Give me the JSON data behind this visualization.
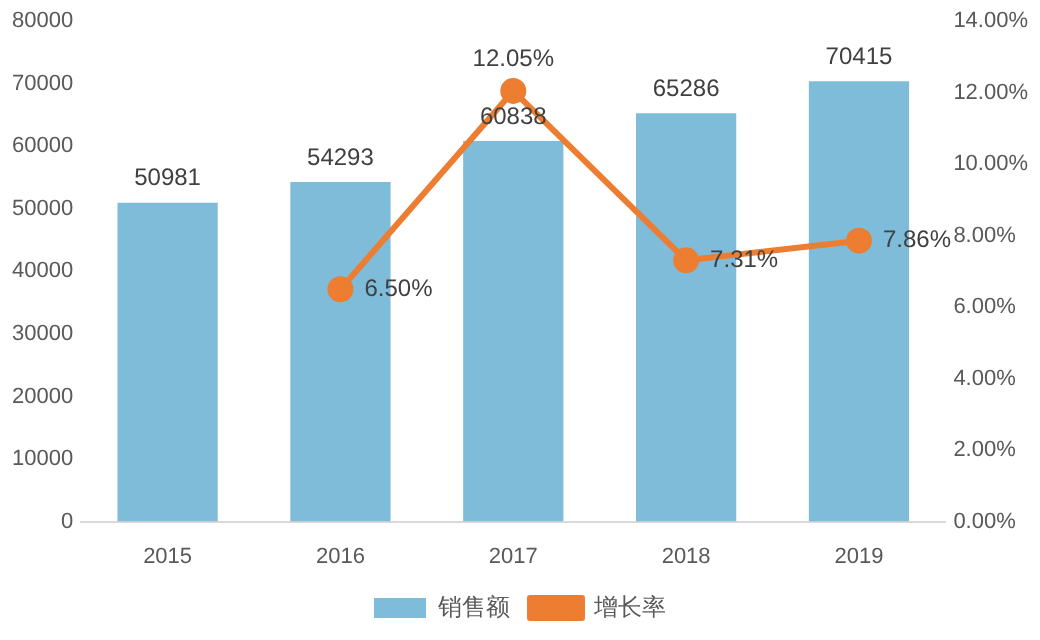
{
  "chart_data": {
    "type": "bar",
    "categories": [
      "2015",
      "2016",
      "2017",
      "2018",
      "2019"
    ],
    "series": [
      {
        "name": "销售额",
        "color": "#7fbcd9",
        "values": [
          50981,
          54293,
          60838,
          65286,
          70415
        ],
        "value_labels": [
          "50981",
          "54293",
          "60838",
          "65286",
          "70415"
        ]
      },
      {
        "name": "增长率",
        "type": "line",
        "axis": "y2",
        "color": "#ed7d31",
        "values": [
          null,
          6.5,
          12.05,
          7.31,
          7.86
        ],
        "value_labels": [
          null,
          "6.50%",
          "12.05%",
          "7.31%",
          "7.86%"
        ]
      }
    ],
    "ylim": [
      0,
      80000
    ],
    "yticks": [
      0,
      10000,
      20000,
      30000,
      40000,
      50000,
      60000,
      70000,
      80000
    ],
    "y2lim": [
      0,
      14
    ],
    "y2ticks": [
      {
        "value": 0,
        "label": "0.00%"
      },
      {
        "value": 2,
        "label": "2.00%"
      },
      {
        "value": 4,
        "label": "4.00%"
      },
      {
        "value": 6,
        "label": "6.00%"
      },
      {
        "value": 8,
        "label": "8.00%"
      },
      {
        "value": 10,
        "label": "10.00%"
      },
      {
        "value": 12,
        "label": "12.00%"
      },
      {
        "value": 14,
        "label": "14.00%"
      }
    ],
    "grid": false,
    "legend": "bottom",
    "marker": "circle"
  }
}
